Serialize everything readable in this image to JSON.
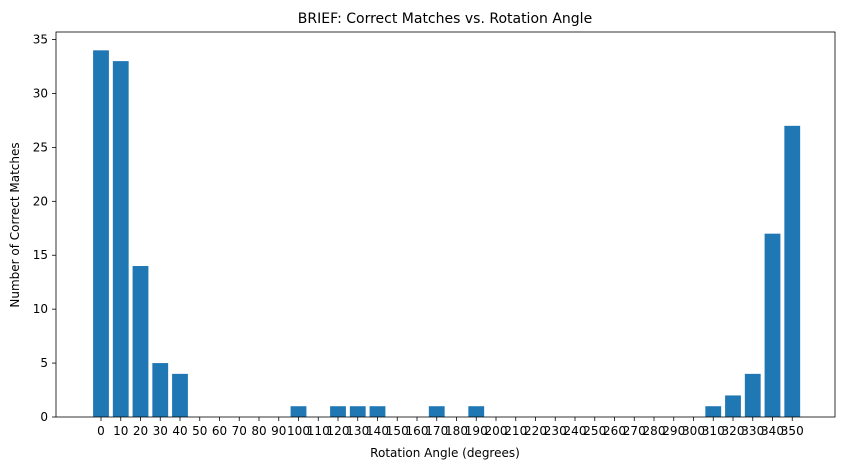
{
  "chart_data": {
    "type": "bar",
    "title": "BRIEF: Correct Matches vs. Rotation Angle",
    "xlabel": "Rotation Angle (degrees)",
    "ylabel": "Number of Correct Matches",
    "categories": [
      "0",
      "10",
      "20",
      "30",
      "40",
      "50",
      "60",
      "70",
      "80",
      "90",
      "100",
      "110",
      "120",
      "130",
      "140",
      "150",
      "160",
      "170",
      "180",
      "190",
      "200",
      "210",
      "220",
      "230",
      "240",
      "250",
      "260",
      "270",
      "280",
      "290",
      "300",
      "310",
      "320",
      "330",
      "340",
      "350"
    ],
    "values": [
      34,
      33,
      14,
      5,
      4,
      0,
      0,
      0,
      0,
      0,
      1,
      0,
      1,
      1,
      1,
      0,
      0,
      1,
      0,
      1,
      0,
      0,
      0,
      0,
      0,
      0,
      0,
      0,
      0,
      0,
      0,
      1,
      2,
      4,
      17,
      27
    ],
    "ylim": [
      0,
      35.7
    ],
    "yticks": [
      "0",
      "5",
      "10",
      "15",
      "20",
      "25",
      "30",
      "35"
    ],
    "bar_color": "#1f77b4",
    "grid": false,
    "legend": "none"
  }
}
